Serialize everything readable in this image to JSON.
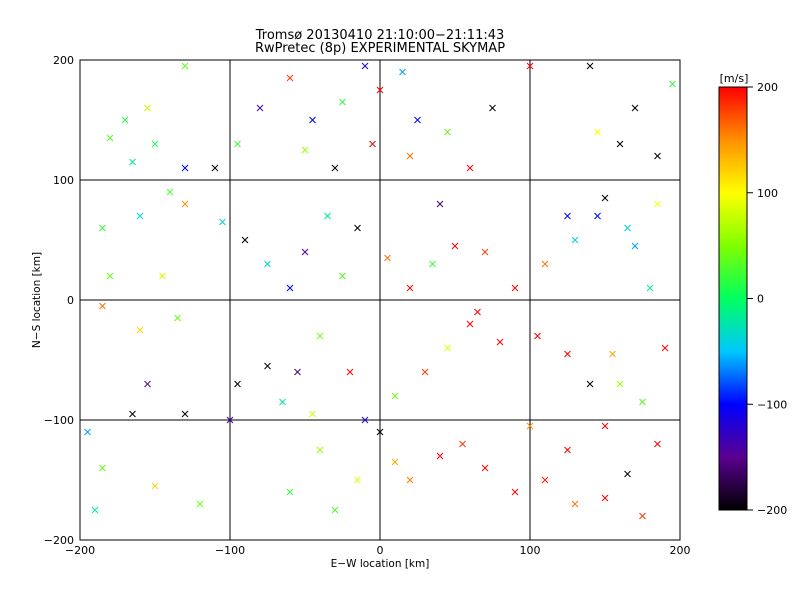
{
  "chart_data": {
    "type": "scatter",
    "title": "Tromsø 20130410 21:10:00−21:11:43",
    "subtitle": "RwPretec (8p) EXPERIMENTAL SKYMAP",
    "xlabel": "E−W location [km]",
    "ylabel": "N−S location [km]",
    "xlim": [
      -200,
      200
    ],
    "ylim": [
      -200,
      200
    ],
    "grid": true,
    "x_ticks": [
      "−200",
      "−100",
      "0",
      "100",
      "200"
    ],
    "y_ticks": [
      "−200",
      "−100",
      "0",
      "100",
      "200"
    ],
    "x_tick_values": [
      -200,
      -100,
      0,
      100,
      200
    ],
    "y_tick_values": [
      -200,
      -100,
      0,
      100,
      200
    ],
    "markers": [
      "x",
      "dot"
    ],
    "colorbar": {
      "label": "[m/s]",
      "range": [
        -200,
        200
      ],
      "tick_labels": [
        "200",
        "100",
        "0",
        "−100",
        "−200"
      ],
      "tick_values": [
        200,
        100,
        0,
        -100,
        -200
      ],
      "colors": [
        "#000000",
        "#5a0090",
        "#0000ff",
        "#00c8ff",
        "#00ff60",
        "#80ff00",
        "#ffff00",
        "#ff9000",
        "#ff0000"
      ]
    },
    "points": [
      {
        "x": -155,
        "y": 160,
        "v": 80,
        "m": "x"
      },
      {
        "x": -170,
        "y": 150,
        "v": 10,
        "m": "x"
      },
      {
        "x": -180,
        "y": 135,
        "v": 30,
        "m": "x"
      },
      {
        "x": -150,
        "y": 130,
        "v": 10,
        "m": "x"
      },
      {
        "x": -165,
        "y": 115,
        "v": -20,
        "m": "x"
      },
      {
        "x": -130,
        "y": 110,
        "v": -100,
        "m": "x"
      },
      {
        "x": -140,
        "y": 90,
        "v": 30,
        "m": "x"
      },
      {
        "x": -160,
        "y": 70,
        "v": -40,
        "m": "x"
      },
      {
        "x": -185,
        "y": 60,
        "v": 20,
        "m": "x"
      },
      {
        "x": -130,
        "y": 80,
        "v": 150,
        "m": "x"
      },
      {
        "x": -110,
        "y": 110,
        "v": -200,
        "m": "x"
      },
      {
        "x": -95,
        "y": 130,
        "v": 20,
        "m": "x"
      },
      {
        "x": -180,
        "y": 20,
        "v": 40,
        "m": "x"
      },
      {
        "x": -145,
        "y": 20,
        "v": 80,
        "m": "x"
      },
      {
        "x": -185,
        "y": -5,
        "v": 160,
        "m": "x"
      },
      {
        "x": -160,
        "y": -25,
        "v": 120,
        "m": "x"
      },
      {
        "x": -135,
        "y": -15,
        "v": 40,
        "m": "x"
      },
      {
        "x": -155,
        "y": -70,
        "v": -150,
        "m": "x"
      },
      {
        "x": -165,
        "y": -95,
        "v": -200,
        "m": "x"
      },
      {
        "x": -130,
        "y": -95,
        "v": -200,
        "m": "x"
      },
      {
        "x": -150,
        "y": -155,
        "v": 120,
        "m": "x"
      },
      {
        "x": -120,
        "y": -170,
        "v": 40,
        "m": "x"
      },
      {
        "x": -190,
        "y": -175,
        "v": -20,
        "m": "x"
      },
      {
        "x": -100,
        "y": -100,
        "v": -140,
        "m": "x"
      },
      {
        "x": -75,
        "y": -55,
        "v": -200,
        "m": "x"
      },
      {
        "x": -55,
        "y": -60,
        "v": -160,
        "m": "x"
      },
      {
        "x": -65,
        "y": -85,
        "v": -20,
        "m": "x"
      },
      {
        "x": -45,
        "y": -95,
        "v": 80,
        "m": "x"
      },
      {
        "x": -40,
        "y": -125,
        "v": 60,
        "m": "x"
      },
      {
        "x": -60,
        "y": -160,
        "v": 20,
        "m": "x"
      },
      {
        "x": -30,
        "y": -175,
        "v": 30,
        "m": "x"
      },
      {
        "x": -15,
        "y": -150,
        "v": 90,
        "m": "x"
      },
      {
        "x": 10,
        "y": -135,
        "v": 140,
        "m": "x"
      },
      {
        "x": 20,
        "y": -150,
        "v": 160,
        "m": "x"
      },
      {
        "x": 40,
        "y": -130,
        "v": 200,
        "m": "x"
      },
      {
        "x": 55,
        "y": -120,
        "v": 180,
        "m": "x"
      },
      {
        "x": 70,
        "y": -140,
        "v": 200,
        "m": "x"
      },
      {
        "x": 90,
        "y": -160,
        "v": 200,
        "m": "x"
      },
      {
        "x": 110,
        "y": -150,
        "v": 190,
        "m": "x"
      },
      {
        "x": 130,
        "y": -170,
        "v": 160,
        "m": "x"
      },
      {
        "x": 150,
        "y": -165,
        "v": 200,
        "m": "x"
      },
      {
        "x": 165,
        "y": -145,
        "v": -200,
        "m": "x"
      },
      {
        "x": 175,
        "y": -180,
        "v": 180,
        "m": "x"
      },
      {
        "x": 125,
        "y": -125,
        "v": 200,
        "m": "x"
      },
      {
        "x": 100,
        "y": -105,
        "v": 150,
        "m": "x"
      },
      {
        "x": 150,
        "y": -105,
        "v": 200,
        "m": "x"
      },
      {
        "x": 140,
        "y": -70,
        "v": -200,
        "m": "x"
      },
      {
        "x": 160,
        "y": -70,
        "v": 60,
        "m": "x"
      },
      {
        "x": 175,
        "y": -85,
        "v": 30,
        "m": "x"
      },
      {
        "x": 155,
        "y": -45,
        "v": 140,
        "m": "x"
      },
      {
        "x": 125,
        "y": -45,
        "v": 200,
        "m": "x"
      },
      {
        "x": 105,
        "y": -30,
        "v": 200,
        "m": "x"
      },
      {
        "x": 80,
        "y": -35,
        "v": 200,
        "m": "x"
      },
      {
        "x": 60,
        "y": -20,
        "v": 200,
        "m": "x"
      },
      {
        "x": 90,
        "y": 10,
        "v": 200,
        "m": "x"
      },
      {
        "x": 110,
        "y": 30,
        "v": 160,
        "m": "x"
      },
      {
        "x": 130,
        "y": 50,
        "v": -40,
        "m": "x"
      },
      {
        "x": 145,
        "y": 70,
        "v": -100,
        "m": "x"
      },
      {
        "x": 150,
        "y": 85,
        "v": -200,
        "m": "x"
      },
      {
        "x": 165,
        "y": 60,
        "v": -40,
        "m": "x"
      },
      {
        "x": 170,
        "y": 45,
        "v": -60,
        "m": "x"
      },
      {
        "x": 180,
        "y": 10,
        "v": -20,
        "m": "x"
      },
      {
        "x": 185,
        "y": 80,
        "v": 100,
        "m": "x"
      },
      {
        "x": 160,
        "y": 130,
        "v": -200,
        "m": "x"
      },
      {
        "x": 185,
        "y": 120,
        "v": -200,
        "m": "x"
      },
      {
        "x": 170,
        "y": 160,
        "v": -200,
        "m": "x"
      },
      {
        "x": 145,
        "y": 140,
        "v": 100,
        "m": "x"
      },
      {
        "x": 125,
        "y": 70,
        "v": -100,
        "m": "x"
      },
      {
        "x": 75,
        "y": 160,
        "v": -200,
        "m": "x"
      },
      {
        "x": 60,
        "y": 110,
        "v": 200,
        "m": "x"
      },
      {
        "x": 45,
        "y": 140,
        "v": 40,
        "m": "x"
      },
      {
        "x": 25,
        "y": 150,
        "v": -100,
        "m": "x"
      },
      {
        "x": 15,
        "y": 190,
        "v": -60,
        "m": "x"
      },
      {
        "x": 0,
        "y": 175,
        "v": 200,
        "m": "x"
      },
      {
        "x": -10,
        "y": 195,
        "v": -120,
        "m": "x"
      },
      {
        "x": -25,
        "y": 165,
        "v": 20,
        "m": "x"
      },
      {
        "x": -45,
        "y": 150,
        "v": -100,
        "m": "x"
      },
      {
        "x": -60,
        "y": 185,
        "v": 180,
        "m": "x"
      },
      {
        "x": -80,
        "y": 160,
        "v": -140,
        "m": "x"
      },
      {
        "x": -50,
        "y": 125,
        "v": 60,
        "m": "x"
      },
      {
        "x": -30,
        "y": 110,
        "v": -200,
        "m": "x"
      },
      {
        "x": -5,
        "y": 130,
        "v": 200,
        "m": "x"
      },
      {
        "x": 20,
        "y": 120,
        "v": 160,
        "m": "x"
      },
      {
        "x": 40,
        "y": 80,
        "v": -160,
        "m": "x"
      },
      {
        "x": 50,
        "y": 45,
        "v": 200,
        "m": "x"
      },
      {
        "x": 35,
        "y": 30,
        "v": 20,
        "m": "x"
      },
      {
        "x": 70,
        "y": 40,
        "v": 180,
        "m": "x"
      },
      {
        "x": 65,
        "y": -10,
        "v": 200,
        "m": "x"
      },
      {
        "x": 45,
        "y": -40,
        "v": 90,
        "m": "x"
      },
      {
        "x": 30,
        "y": -60,
        "v": 180,
        "m": "x"
      },
      {
        "x": 10,
        "y": -80,
        "v": 40,
        "m": "x"
      },
      {
        "x": -10,
        "y": -100,
        "v": -120,
        "m": "x"
      },
      {
        "x": 0,
        "y": -110,
        "v": -200,
        "m": "x"
      },
      {
        "x": -20,
        "y": -60,
        "v": 200,
        "m": "x"
      },
      {
        "x": -40,
        "y": -30,
        "v": 40,
        "m": "x"
      },
      {
        "x": -60,
        "y": 10,
        "v": -100,
        "m": "x"
      },
      {
        "x": -75,
        "y": 30,
        "v": -40,
        "m": "x"
      },
      {
        "x": -90,
        "y": 50,
        "v": -200,
        "m": "x"
      },
      {
        "x": -50,
        "y": 40,
        "v": -140,
        "m": "x"
      },
      {
        "x": -35,
        "y": 70,
        "v": -20,
        "m": "x"
      },
      {
        "x": -15,
        "y": 60,
        "v": -200,
        "m": "x"
      },
      {
        "x": 5,
        "y": 35,
        "v": 160,
        "m": "x"
      },
      {
        "x": 20,
        "y": 10,
        "v": 200,
        "m": "x"
      },
      {
        "x": -25,
        "y": 20,
        "v": 30,
        "m": "x"
      },
      {
        "x": -105,
        "y": 65,
        "v": -40,
        "m": "x"
      },
      {
        "x": -95,
        "y": -70,
        "v": -200,
        "m": "x"
      },
      {
        "x": 195,
        "y": 180,
        "v": 20,
        "m": "x"
      },
      {
        "x": 140,
        "y": 195,
        "v": -200,
        "m": "x"
      },
      {
        "x": 100,
        "y": 195,
        "v": 200,
        "m": "x"
      },
      {
        "x": -130,
        "y": 195,
        "v": 40,
        "m": "x"
      },
      {
        "x": -195,
        "y": -110,
        "v": -60,
        "m": "x"
      },
      {
        "x": -185,
        "y": -140,
        "v": 40,
        "m": "x"
      },
      {
        "x": 185,
        "y": -120,
        "v": 200,
        "m": "x"
      },
      {
        "x": 190,
        "y": -40,
        "v": 200,
        "m": "x"
      }
    ]
  }
}
